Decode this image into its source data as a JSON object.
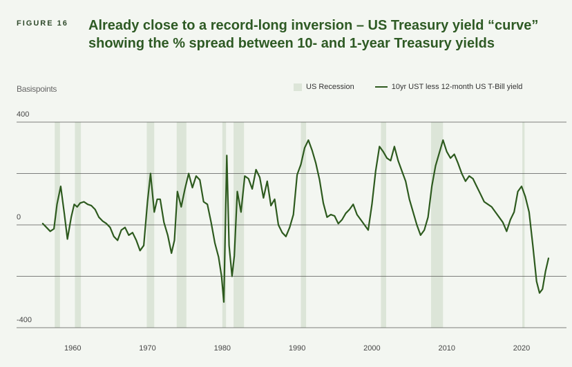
{
  "header": {
    "figure_label": "FIGURE 16",
    "title": "Already close to a record-long inversion – US Treasury yield “curve” showing the % spread between 10- and 1-year Treasury yields"
  },
  "colors": {
    "background": "#f3f6f1",
    "line": "#2d5a1e",
    "recession": "#dce5d8",
    "grid": "#555555"
  },
  "chart_data": {
    "type": "line",
    "title": "Already close to a record-long inversion – US Treasury yield “curve” showing the % spread between 10- and 1-year Treasury yields",
    "ylabel": "Basispoints",
    "xlabel": "",
    "xlim": [
      1952.5,
      2026
    ],
    "ylim": [
      -400,
      400
    ],
    "y_ticks": [
      400,
      0,
      -400
    ],
    "y_tick_labels": [
      "400",
      "0",
      "-400"
    ],
    "x_ticks": [
      1960,
      1970,
      1980,
      1990,
      2000,
      2010,
      2020
    ],
    "gridlines_y": [
      400,
      200,
      0,
      -200,
      -400
    ],
    "legend": [
      "US Recession",
      "10yr UST less 12-month US T-Bill yield"
    ],
    "legend_position": "top-right",
    "recessions": [
      [
        1957.6,
        1958.3
      ],
      [
        1960.3,
        1961.1
      ],
      [
        1969.9,
        1970.9
      ],
      [
        1973.9,
        1975.2
      ],
      [
        1980.0,
        1980.5
      ],
      [
        1981.5,
        1982.9
      ],
      [
        1990.5,
        1991.2
      ],
      [
        2001.2,
        2001.9
      ],
      [
        2007.9,
        2009.5
      ],
      [
        2020.1,
        2020.4
      ]
    ],
    "series": [
      {
        "name": "10yr UST less 12-month US T-Bill yield",
        "x": [
          1956.0,
          1956.5,
          1957.0,
          1957.5,
          1957.9,
          1958.4,
          1958.9,
          1959.3,
          1959.8,
          1960.2,
          1960.6,
          1961.0,
          1961.5,
          1962.0,
          1962.5,
          1963.0,
          1963.5,
          1964.0,
          1964.5,
          1965.0,
          1965.5,
          1966.0,
          1966.5,
          1967.0,
          1967.5,
          1968.0,
          1968.5,
          1969.0,
          1969.5,
          1970.0,
          1970.4,
          1970.9,
          1971.3,
          1971.7,
          1972.2,
          1972.7,
          1973.2,
          1973.6,
          1974.0,
          1974.5,
          1975.0,
          1975.5,
          1976.0,
          1976.5,
          1977.0,
          1977.5,
          1978.0,
          1978.5,
          1979.0,
          1979.5,
          1979.9,
          1980.2,
          1980.6,
          1980.9,
          1981.3,
          1981.6,
          1982.0,
          1982.5,
          1983.0,
          1983.5,
          1984.0,
          1984.5,
          1985.0,
          1985.5,
          1986.0,
          1986.5,
          1987.0,
          1987.5,
          1988.0,
          1988.5,
          1989.0,
          1989.5,
          1990.0,
          1990.5,
          1991.0,
          1991.5,
          1992.0,
          1992.5,
          1993.0,
          1993.5,
          1994.0,
          1994.5,
          1995.0,
          1995.5,
          1996.0,
          1996.5,
          1997.0,
          1997.5,
          1998.0,
          1998.5,
          1999.0,
          1999.5,
          2000.0,
          2000.5,
          2001.0,
          2001.5,
          2002.0,
          2002.5,
          2003.0,
          2003.5,
          2004.0,
          2004.5,
          2005.0,
          2005.5,
          2006.0,
          2006.5,
          2007.0,
          2007.5,
          2008.0,
          2008.5,
          2009.0,
          2009.5,
          2010.0,
          2010.5,
          2011.0,
          2011.5,
          2012.0,
          2012.5,
          2013.0,
          2013.5,
          2014.0,
          2014.5,
          2015.0,
          2015.5,
          2016.0,
          2016.5,
          2017.0,
          2017.5,
          2018.0,
          2018.5,
          2019.0,
          2019.5,
          2020.0,
          2020.5,
          2021.0,
          2021.5,
          2022.0,
          2022.4,
          2022.8,
          2023.2,
          2023.6
        ],
        "values": [
          5,
          -10,
          -25,
          -15,
          80,
          150,
          40,
          -55,
          30,
          80,
          70,
          85,
          90,
          80,
          75,
          60,
          30,
          15,
          5,
          -10,
          -45,
          -60,
          -20,
          -10,
          -40,
          -30,
          -60,
          -100,
          -80,
          90,
          200,
          50,
          100,
          100,
          10,
          -40,
          -110,
          -60,
          130,
          70,
          140,
          200,
          145,
          190,
          175,
          90,
          80,
          10,
          -70,
          -125,
          -200,
          -300,
          270,
          -80,
          -200,
          -120,
          130,
          50,
          190,
          180,
          140,
          215,
          185,
          105,
          170,
          75,
          100,
          0,
          -30,
          -45,
          -10,
          40,
          195,
          235,
          300,
          330,
          290,
          240,
          175,
          85,
          30,
          40,
          35,
          5,
          20,
          45,
          60,
          80,
          40,
          20,
          0,
          -20,
          80,
          210,
          305,
          285,
          260,
          250,
          305,
          250,
          210,
          170,
          100,
          50,
          0,
          -40,
          -20,
          30,
          150,
          230,
          280,
          330,
          285,
          260,
          275,
          240,
          200,
          170,
          190,
          180,
          150,
          120,
          90,
          80,
          70,
          50,
          30,
          10,
          -25,
          20,
          50,
          130,
          150,
          110,
          50,
          -80,
          -220,
          -265,
          -250,
          -180,
          -130
        ]
      }
    ]
  }
}
